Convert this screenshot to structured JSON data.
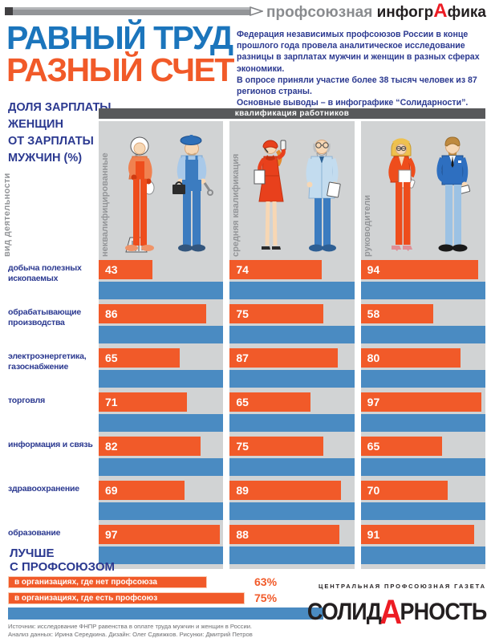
{
  "header": {
    "kicker_gray": "профсоюзная ",
    "kicker_black_pre": "инфогр",
    "kicker_red_letter": "А",
    "kicker_black_post": "фика",
    "title_line1": "РАВНЫЙ ТРУД",
    "title_line2": "РАЗНЫЙ СЧЕТ",
    "intro": "Федерация независимых профсоюзов России в конце прошлого года провела аналитическое исследование разницы в зарплатах мужчин и женщин в разных сферах экономики.\nВ опросе приняли участие более 38 тысяч человек из 87 регионов страны.\nОсновные выводы – в инфографике “Солидарности”."
  },
  "chart_data": {
    "type": "bar",
    "title": "РАВНЫЙ ТРУД РАЗНЫЙ СЧЕТ",
    "share_axis_label": "ДОЛЯ ЗАРПЛАТЫ\nЖЕНЩИН\nОТ ЗАРПЛАТЫ\nМУЖЧИН (%)",
    "row_axis_title": "вид деятельности",
    "group_axis_title": "квалификация работников",
    "groups": [
      "неквалифицированные",
      "средняя квалификация",
      "руководители"
    ],
    "baseline": 100,
    "rows": [
      {
        "label": "добыча полезных\nископаемых",
        "values": [
          43,
          74,
          94
        ]
      },
      {
        "label": "обрабатывающие\nпроизводства",
        "values": [
          86,
          75,
          58
        ]
      },
      {
        "label": "электроэнергетика,\nгазоснабжение",
        "values": [
          65,
          87,
          80
        ]
      },
      {
        "label": "торговля",
        "values": [
          71,
          65,
          97
        ]
      },
      {
        "label": "информация и связь",
        "values": [
          82,
          75,
          65
        ]
      },
      {
        "label": "здравоохранение",
        "values": [
          69,
          89,
          70
        ]
      },
      {
        "label": "образование",
        "values": [
          97,
          88,
          91
        ]
      }
    ],
    "union_section": {
      "heading": "ЛУЧШЕ\nС ПРОФСОЮЗОМ",
      "baseline": 100,
      "bars": [
        {
          "label": "в организациях, где нет профсоюза",
          "value": 63,
          "value_label": "63%"
        },
        {
          "label": "в организациях, где есть профсоюз",
          "value": 75,
          "value_label": "75%"
        }
      ]
    }
  },
  "illustrations": {
    "unskilled_female": "cleaner-woman",
    "unskilled_male": "worker-man",
    "mid_qualified_female": "operator-woman",
    "mid_qualified_male": "doctor-man",
    "leader_female": "manager-woman",
    "leader_male": "manager-man"
  },
  "footer": {
    "source": "Источник: исследование ФНПР равенства в оплате труда мужчин и женщин в России.\nАнализ данных: Ирина Середкина. Дизайн: Олег Сдвижков. Рисунки: Дмитрий Петров",
    "newspaper_tagline": "ЦЕНТРАЛЬНАЯ ПРОФСОЮЗНАЯ ГАЗЕТА",
    "logo_pre": "СОЛИД",
    "logo_red_letter": "А",
    "logo_post": "РНОСТЬ"
  },
  "colors": {
    "title_blue": "#1b75bc",
    "accent_orange": "#f15a29",
    "bar_blue": "#4a8bc2",
    "navy_text": "#2b3990",
    "column_bg": "#d1d3d4",
    "header_bar": "#58595b",
    "gray_text": "#939598",
    "logo_red": "#ed1c24"
  }
}
